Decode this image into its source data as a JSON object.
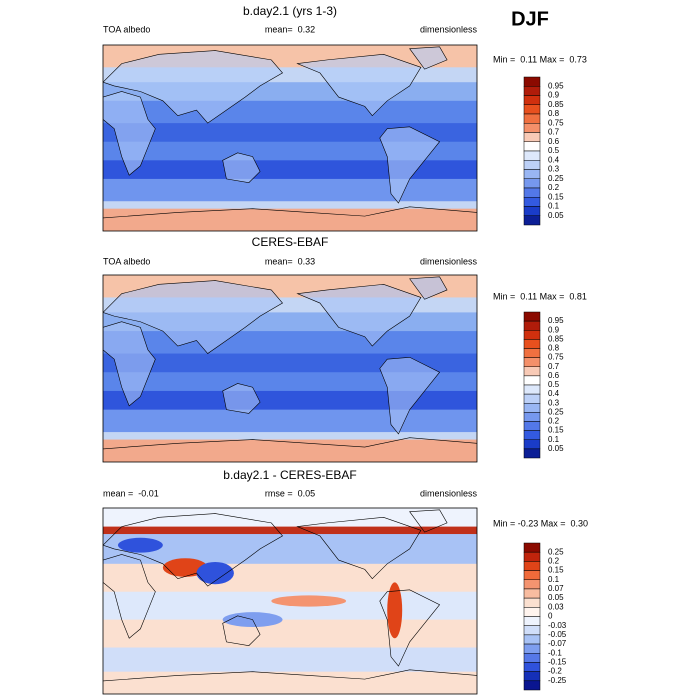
{
  "header": {
    "season": "DJF"
  },
  "panels": [
    {
      "title": "b.day2.1 (yrs 1-3)",
      "left": "TOA albedo",
      "center": "mean=  0.32",
      "right": "dimensionless",
      "range": "Min =  0.11 Max =  0.73",
      "colorbar": {
        "labels": [
          "0.95",
          "0.9",
          "0.85",
          "0.8",
          "0.75",
          "0.7",
          "0.6",
          "0.5",
          "0.4",
          "0.3",
          "0.25",
          "0.2",
          "0.15",
          "0.1",
          "0.05"
        ],
        "colors": [
          "#8b0a00",
          "#b01c0a",
          "#d0300e",
          "#e8501e",
          "#f07040",
          "#f4906a",
          "#f8cab6",
          "#ffffff",
          "#dde8fb",
          "#bcd0f7",
          "#99b6f3",
          "#7698ee",
          "#5378e8",
          "#335ae0",
          "#1a3cc8",
          "#0c1f96"
        ]
      }
    },
    {
      "title": "CERES-EBAF",
      "left": "TOA albedo",
      "center": "mean=  0.33",
      "right": "dimensionless",
      "range": "Min =  0.11 Max =  0.81",
      "colorbar": {
        "labels": [
          "0.95",
          "0.9",
          "0.85",
          "0.8",
          "0.75",
          "0.7",
          "0.6",
          "0.5",
          "0.4",
          "0.3",
          "0.25",
          "0.2",
          "0.15",
          "0.1",
          "0.05"
        ],
        "colors": [
          "#8b0a00",
          "#b01c0a",
          "#d0300e",
          "#e8501e",
          "#f07040",
          "#f4906a",
          "#f8cab6",
          "#ffffff",
          "#dde8fb",
          "#bcd0f7",
          "#99b6f3",
          "#7698ee",
          "#5378e8",
          "#335ae0",
          "#1a3cc8",
          "#0c1f96"
        ]
      }
    },
    {
      "title": "b.day2.1 - CERES-EBAF",
      "left": "mean =  -0.01",
      "center": "rmse =  0.05",
      "right": "dimensionless",
      "range": "Min = -0.23 Max =  0.30",
      "colorbar": {
        "labels": [
          "0.25",
          "0.2",
          "0.15",
          "0.1",
          "0.07",
          "0.05",
          "0.03",
          "0",
          "-0.03",
          "-0.05",
          "-0.07",
          "-0.1",
          "-0.15",
          "-0.2",
          "-0.25"
        ],
        "colors": [
          "#8b0a00",
          "#c0240c",
          "#e04418",
          "#f06a3a",
          "#f49470",
          "#f8bca0",
          "#fbe0d0",
          "#fff4ee",
          "#eef3fd",
          "#d0def9",
          "#a8c2f5",
          "#7e9eef",
          "#5678e8",
          "#2f52dc",
          "#1530b8",
          "#0a1590"
        ]
      }
    }
  ]
}
